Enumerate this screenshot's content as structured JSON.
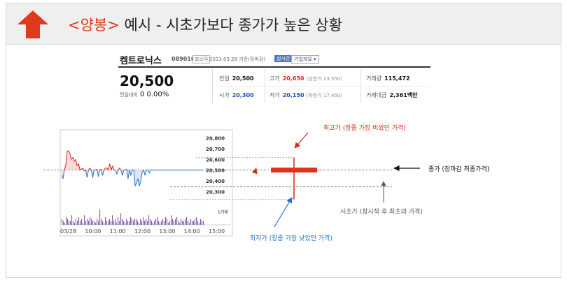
{
  "header": {
    "title_highlight": "<양봉>",
    "title_rest": " 예시  - 시초가보다 종가가 높은 상황",
    "arrow_color": "#e03a1e"
  },
  "stock": {
    "name": "켐트로닉스",
    "code": "089010",
    "market_tag": "코스닥",
    "date": "2013.03.28 기준(장마감)",
    "live_button": "실시간",
    "info_button": "기업개요 ▾",
    "price": "20,500",
    "change_label": "전일대비",
    "change_value": "0",
    "change_pct": "0.00%",
    "prev_label": "전일",
    "prev_value": "20,500",
    "high_label": "고가",
    "high_value": "20,650",
    "upper_limit": "(상한가 23,550)",
    "volume_label": "거래량",
    "volume_value": "115,472",
    "open_label": "시가",
    "open_value": "20,300",
    "low_label": "저가",
    "low_value": "20,150",
    "lower_limit": "(하한가 17,450)",
    "amount_label": "거래대금",
    "amount_value": "2,361백만"
  },
  "annotations": {
    "high": "최고가 (장중 가장 비쌌던 가격)",
    "close": "종가 (장마감 최종가격)",
    "open": "시초가 (장시작 후 최초의 가격)",
    "low": "최저가 (장중 가장 낮았던 가격)",
    "high_color": "#d62a1a",
    "low_color": "#1f6fd0",
    "close_color": "#111111",
    "open_color": "#555555",
    "candle_color": "#e0301e"
  },
  "chart_data": {
    "type": "line",
    "x_tick_labels": [
      "03/28",
      "10:00",
      "11:00",
      "12:00",
      "13:00",
      "14:00",
      "15:00"
    ],
    "y_tick_labels": [
      "20,800",
      "20,700",
      "20,600",
      "20,500",
      "20,400",
      "20,300"
    ],
    "ylim": [
      20250,
      20850
    ],
    "reference_price": 20500,
    "volume_unit": "1거래",
    "x": [
      0,
      2,
      4,
      6,
      7,
      8,
      10,
      12,
      14,
      16,
      18,
      20,
      22,
      24,
      26,
      28,
      30,
      32,
      34,
      36,
      38,
      40,
      42,
      44,
      46,
      48,
      50,
      52,
      54,
      56,
      58,
      60,
      62,
      64,
      66,
      68,
      70,
      72,
      74,
      76,
      78,
      80,
      82,
      84,
      86,
      88,
      90,
      92,
      94,
      96,
      98,
      100,
      102,
      104,
      106,
      108,
      110,
      112,
      114,
      116,
      118,
      120,
      122,
      124,
      126,
      128,
      130,
      132,
      134,
      136,
      138,
      140,
      142,
      144,
      146,
      148,
      150,
      152,
      154,
      156,
      158,
      160,
      162,
      164,
      166,
      168,
      170,
      172,
      174,
      176,
      178,
      180,
      182,
      184,
      186,
      188,
      190,
      192,
      194,
      196,
      198,
      200
    ],
    "values": [
      20450,
      20420,
      20500,
      20550,
      20620,
      20680,
      20680,
      20650,
      20600,
      20620,
      20580,
      20600,
      20540,
      20560,
      20500,
      20510,
      20520,
      20490,
      20500,
      20430,
      20500,
      20520,
      20500,
      20430,
      20500,
      20500,
      20510,
      20440,
      20500,
      20510,
      20450,
      20500,
      20520,
      20520,
      20500,
      20560,
      20500,
      20540,
      20500,
      20500,
      20460,
      20500,
      20520,
      20500,
      20450,
      20500,
      20500,
      20510,
      20420,
      20500,
      20450,
      20500,
      20500,
      20350,
      20380,
      20420,
      20350,
      20400,
      20480,
      20500,
      20450,
      20500,
      20500,
      20470,
      20500,
      20500,
      20500,
      20500,
      20500,
      20500,
      20500,
      20500,
      20500,
      20500,
      20500,
      20500,
      20500,
      20500,
      20500,
      20500,
      20500,
      20500,
      20500,
      20500,
      20500,
      20500,
      20500,
      20500,
      20500,
      20500,
      20500,
      20500,
      20500,
      20500,
      20500,
      20500,
      20500,
      20500,
      20500,
      20500,
      20500,
      20500
    ],
    "volume": [
      3,
      2,
      1,
      4,
      3,
      2,
      2,
      5,
      2,
      1,
      3,
      2,
      4,
      2,
      3,
      1,
      5,
      2,
      3,
      2,
      4,
      3,
      2,
      2,
      1,
      3,
      2,
      8,
      3,
      2,
      1,
      4,
      2,
      2,
      3,
      2,
      5,
      2,
      3,
      1,
      4,
      2,
      6,
      3,
      2,
      1,
      3,
      2,
      2,
      4,
      3,
      2,
      3,
      3,
      2,
      1,
      3,
      2,
      4,
      2,
      3,
      2,
      5,
      3,
      2,
      1,
      2,
      3,
      4,
      2,
      1,
      2,
      3,
      2,
      4,
      3,
      1,
      2,
      5,
      3,
      2,
      3,
      4,
      2,
      1,
      3,
      2,
      2,
      3,
      4,
      2,
      1,
      3,
      2,
      2,
      3,
      4,
      2,
      1,
      3,
      2,
      2
    ],
    "candle": {
      "open": 20300,
      "high": 20650,
      "low": 20150,
      "close": 20500
    }
  }
}
